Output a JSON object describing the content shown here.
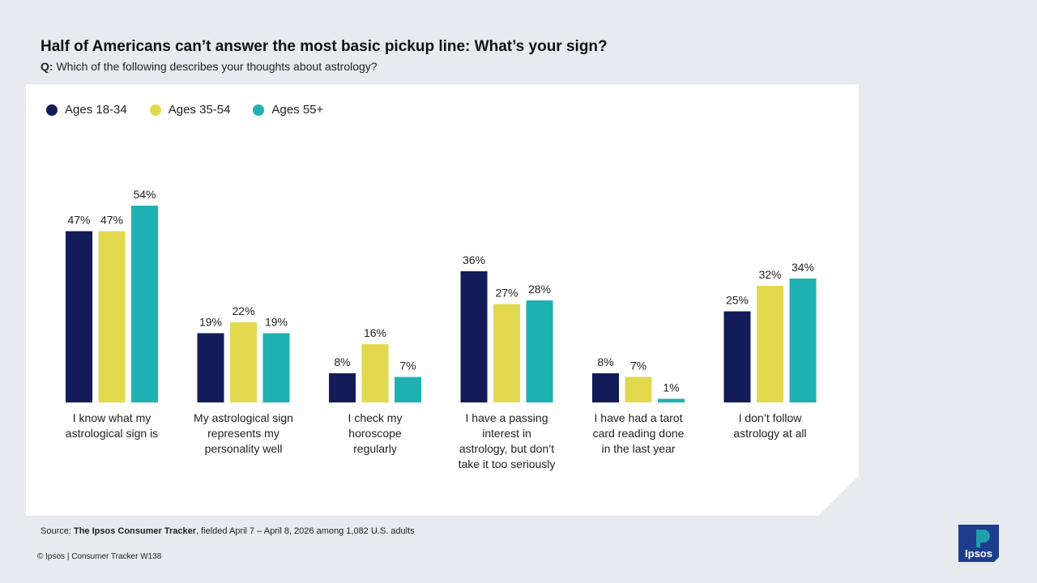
{
  "header": {
    "title": "Half of Americans can’t answer the most basic pickup line: What’s your sign?",
    "question_prefix": "Q:",
    "question_text": "Which of the following describes your thoughts about astrology?"
  },
  "colors": {
    "background": "#e7eaee",
    "card": "#ffffff",
    "series": [
      "#131b58",
      "#e2d94f",
      "#1fb1b1"
    ],
    "logo_bg": "#1e3c8c",
    "logo_accent": "#1fb1b1"
  },
  "chart_data": {
    "type": "bar",
    "categories": [
      [
        "I know what my",
        "astrological sign is"
      ],
      [
        "My astrological sign",
        "represents my",
        "personality well"
      ],
      [
        "I check my",
        "horoscope",
        "regularly"
      ],
      [
        "I have a passing",
        "interest in",
        "astrology, but don’t",
        "take it too seriously"
      ],
      [
        "I have had a tarot",
        "card reading done",
        "in the last year"
      ],
      [
        "I don’t follow",
        "astrology at all"
      ]
    ],
    "series": [
      {
        "name": "Ages 18-34",
        "values": [
          47,
          19,
          8,
          36,
          8,
          25
        ]
      },
      {
        "name": "Ages 35-54",
        "values": [
          47,
          22,
          16,
          27,
          7,
          32
        ]
      },
      {
        "name": "Ages 55+",
        "values": [
          54,
          19,
          7,
          28,
          1,
          34
        ]
      }
    ],
    "value_suffix": "%",
    "legend_position": "top-left",
    "grid": false,
    "ylim": [
      0,
      60
    ]
  },
  "footer": {
    "source_prefix": "Source:",
    "source_name": "The Ipsos Consumer Tracker",
    "source_rest": ", fielded April 7 – April 8, 2026 among 1,082 U.S. adults",
    "copyright": "© Ipsos | Consumer Tracker W138",
    "logo_text": "Ipsos"
  }
}
